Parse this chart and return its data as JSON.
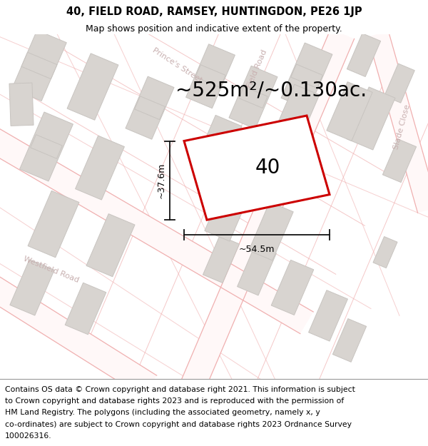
{
  "title": "40, FIELD ROAD, RAMSEY, HUNTINGDON, PE26 1JP",
  "subtitle": "Map shows position and indicative extent of the property.",
  "area_text": "~525m²/~0.130ac.",
  "width_label": "~54.5m",
  "height_label": "~37.6m",
  "property_number": "40",
  "footer_lines": [
    "Contains OS data © Crown copyright and database right 2021. This information is subject",
    "to Crown copyright and database rights 2023 and is reproduced with the permission of",
    "HM Land Registry. The polygons (including the associated geometry, namely x, y",
    "co-ordinates) are subject to Crown copyright and database rights 2023 Ordnance Survey",
    "100026316."
  ],
  "map_bg": "#ffffff",
  "road_line_color": "#f0b0b0",
  "building_fill": "#d8d4d0",
  "building_edge": "#c8c4c0",
  "property_edge": "#cc0000",
  "dim_color": "#111111",
  "road_label_color": "#c8b0b0",
  "title_fontsize": 10.5,
  "subtitle_fontsize": 9,
  "area_fontsize": 20,
  "property_num_fontsize": 20,
  "dim_fontsize": 9,
  "road_label_fontsize": 8,
  "footer_fontsize": 7.8
}
